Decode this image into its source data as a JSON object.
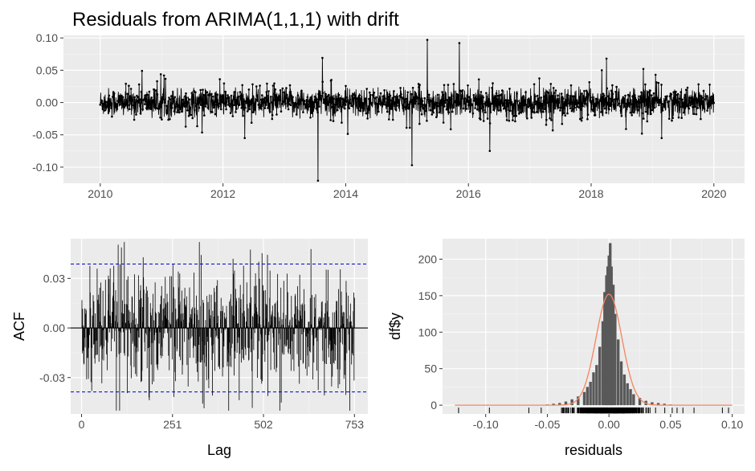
{
  "title": "Residuals from ARIMA(1,1,1) with drift",
  "chart_data": [
    {
      "type": "line",
      "name": "residuals-timeseries",
      "xlim": [
        2009.4,
        2020.5
      ],
      "ylim": [
        -0.125,
        0.104
      ],
      "x_ticks": [
        2010,
        2012,
        2014,
        2016,
        2018,
        2020
      ],
      "x_tick_labels": [
        "2010",
        "2012",
        "2014",
        "2016",
        "2018",
        "2020"
      ],
      "y_ticks": [
        -0.1,
        -0.05,
        0,
        0.05,
        0.1
      ],
      "y_tick_labels": [
        "-0.10",
        "-0.05",
        "0.00",
        "0.05",
        "0.10"
      ],
      "series_style": {
        "color": "#000000",
        "markers": true
      },
      "peaks": [
        {
          "x": 2010.68,
          "y": 0.049
        },
        {
          "x": 2013.55,
          "y": -0.121
        },
        {
          "x": 2013.62,
          "y": 0.069
        },
        {
          "x": 2015.08,
          "y": -0.097
        },
        {
          "x": 2015.33,
          "y": 0.097
        },
        {
          "x": 2015.85,
          "y": 0.092
        },
        {
          "x": 2016.35,
          "y": -0.075
        },
        {
          "x": 2018.25,
          "y": 0.068
        },
        {
          "x": 2018.85,
          "y": 0.052
        },
        {
          "x": 2019.05,
          "y": 0.043
        },
        {
          "x": 2019.15,
          "y": -0.055
        }
      ],
      "grid": true
    },
    {
      "type": "bar",
      "name": "acf",
      "xlabel": "Lag",
      "ylabel": "ACF",
      "xlim": [
        -30,
        790
      ],
      "ylim": [
        -0.052,
        0.054
      ],
      "x_ticks": [
        0,
        251,
        502,
        753
      ],
      "x_tick_labels": [
        "0",
        "251",
        "502",
        "753"
      ],
      "y_ticks": [
        -0.03,
        0,
        0.03
      ],
      "y_tick_labels": [
        "-0.03",
        "0.00",
        "0.03"
      ],
      "n_lags": 753,
      "confidence_bound": 0.0387,
      "confidence_color": "#0000cc",
      "grid": true
    },
    {
      "type": "bar",
      "name": "residual-histogram",
      "xlabel": "residuals",
      "ylabel": "df$y",
      "xlim": [
        -0.135,
        0.11
      ],
      "ylim": [
        -12,
        228
      ],
      "x_ticks": [
        -0.1,
        -0.05,
        0,
        0.05,
        0.1
      ],
      "x_tick_labels": [
        "-0.10",
        "-0.05",
        "0.00",
        "0.05",
        "0.10"
      ],
      "y_ticks": [
        0,
        50,
        100,
        150,
        200
      ],
      "y_tick_labels": [
        "0",
        "50",
        "100",
        "150",
        "200"
      ],
      "bar_color": "#595959",
      "density_color": "#f4845f",
      "normal_peak": 152,
      "bins": [
        {
          "x": -0.05,
          "count": 1
        },
        {
          "x": -0.045,
          "count": 2
        },
        {
          "x": -0.04,
          "count": 3
        },
        {
          "x": -0.035,
          "count": 5
        },
        {
          "x": -0.03,
          "count": 8
        },
        {
          "x": -0.025,
          "count": 12
        },
        {
          "x": -0.02,
          "count": 18
        },
        {
          "x": -0.0175,
          "count": 25
        },
        {
          "x": -0.015,
          "count": 32
        },
        {
          "x": -0.0125,
          "count": 45
        },
        {
          "x": -0.01,
          "count": 55
        },
        {
          "x": -0.0075,
          "count": 80
        },
        {
          "x": -0.005,
          "count": 115
        },
        {
          "x": -0.0035,
          "count": 155
        },
        {
          "x": -0.002,
          "count": 178
        },
        {
          "x": -0.001,
          "count": 190
        },
        {
          "x": 0.0,
          "count": 205
        },
        {
          "x": 0.001,
          "count": 222
        },
        {
          "x": 0.002,
          "count": 190
        },
        {
          "x": 0.0035,
          "count": 165
        },
        {
          "x": 0.005,
          "count": 125
        },
        {
          "x": 0.0075,
          "count": 90
        },
        {
          "x": 0.01,
          "count": 60
        },
        {
          "x": 0.0125,
          "count": 42
        },
        {
          "x": 0.015,
          "count": 30
        },
        {
          "x": 0.0175,
          "count": 22
        },
        {
          "x": 0.02,
          "count": 15
        },
        {
          "x": 0.025,
          "count": 10
        },
        {
          "x": 0.03,
          "count": 6
        },
        {
          "x": 0.035,
          "count": 4
        },
        {
          "x": 0.04,
          "count": 3
        },
        {
          "x": 0.045,
          "count": 2
        },
        {
          "x": 0.05,
          "count": 1
        }
      ],
      "grid": true
    }
  ]
}
